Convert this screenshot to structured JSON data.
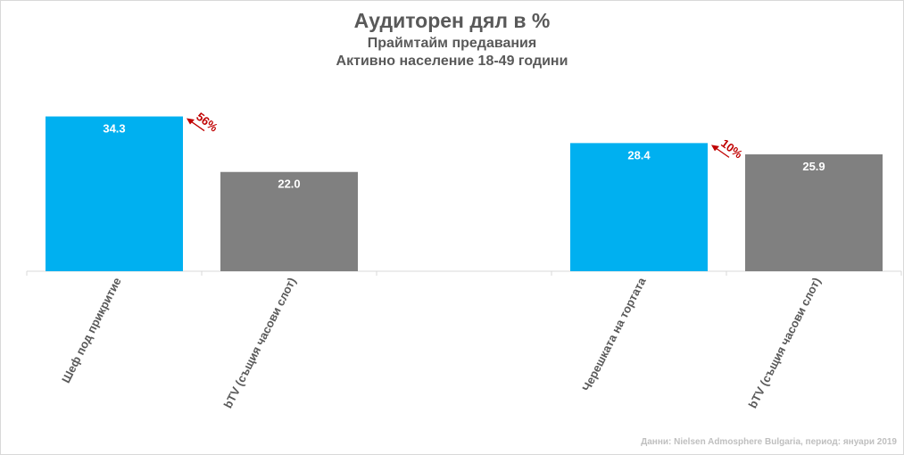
{
  "title": "Аудиторен дял в %",
  "subtitle1": "Праймтайм предавания",
  "subtitle2": "Активно население 18-49  години",
  "source": "Данни: Nielsen Admosphere Bulgaria, период: януари 2019",
  "colors": {
    "primary": "#00b0f0",
    "comparison": "#808080",
    "growth": "#c00000",
    "axis": "#d9d9d9"
  },
  "chart_data": {
    "type": "bar",
    "categories": [
      "Шеф под прикритие",
      "bTV (същия часови слот)",
      "",
      "Черешката на тортата",
      "bTV (същия часови слот)"
    ],
    "values": [
      34.3,
      22.0,
      null,
      28.4,
      25.9
    ],
    "value_labels": [
      "34.3",
      "22.0",
      "",
      "28.4",
      "25.9"
    ],
    "bar_colors": [
      "#00b0f0",
      "#808080",
      null,
      "#00b0f0",
      "#808080"
    ],
    "ylim": [
      0,
      35
    ],
    "grid": false,
    "legend": "none",
    "annotations": [
      {
        "text": "56%",
        "category_index": 0
      },
      {
        "text": "10%",
        "category_index": 3
      }
    ]
  }
}
